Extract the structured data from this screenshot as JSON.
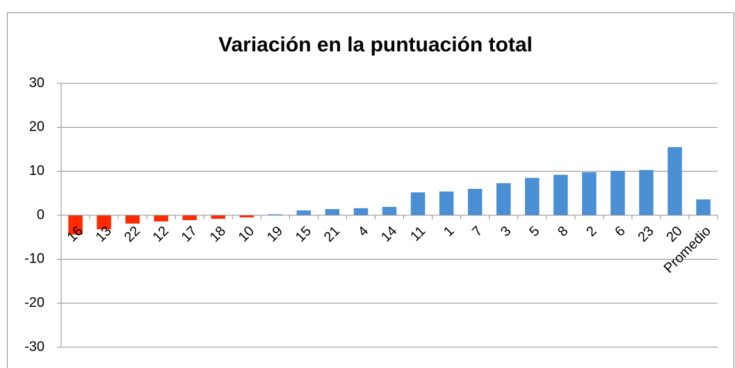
{
  "chart_data": {
    "type": "bar",
    "title": "Variación en la puntuación total",
    "categories": [
      "16",
      "13",
      "22",
      "12",
      "17",
      "18",
      "10",
      "19",
      "15",
      "21",
      "4",
      "14",
      "11",
      "1",
      "7",
      "3",
      "5",
      "8",
      "2",
      "6",
      "23",
      "20",
      "Promedio"
    ],
    "values": [
      -4.4,
      -3.2,
      -1.9,
      -1.4,
      -1.1,
      -0.8,
      -0.5,
      0.2,
      1.1,
      1.4,
      1.6,
      1.9,
      5.2,
      5.4,
      6.0,
      7.3,
      8.5,
      9.2,
      9.8,
      10.1,
      10.3,
      15.5,
      3.6
    ],
    "colors": [
      "#ff2a00",
      "#ff2a00",
      "#ff2a00",
      "#ff2a00",
      "#ff2a00",
      "#ff2a00",
      "#ff2a00",
      "#4a8fd4",
      "#4a8fd4",
      "#4a8fd4",
      "#4a8fd4",
      "#4a8fd4",
      "#4a8fd4",
      "#4a8fd4",
      "#4a8fd4",
      "#4a8fd4",
      "#4a8fd4",
      "#4a8fd4",
      "#4a8fd4",
      "#4a8fd4",
      "#4a8fd4",
      "#4a8fd4",
      "#4a8fd4"
    ],
    "ylim": [
      -30,
      30
    ],
    "yticks": [
      -30,
      -20,
      -10,
      0,
      10,
      20,
      30
    ],
    "grid": true
  }
}
